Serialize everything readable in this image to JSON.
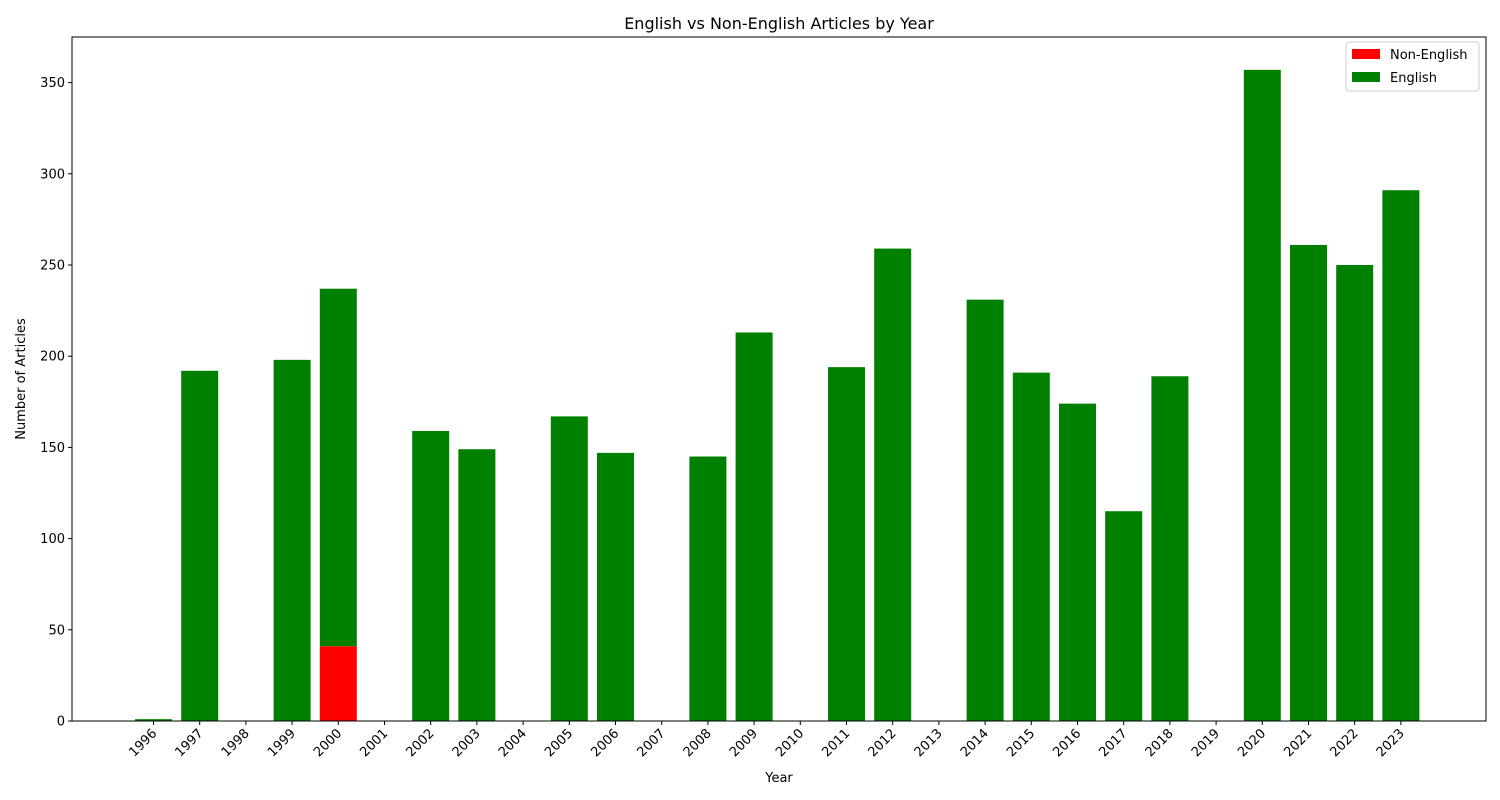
{
  "chart_data": {
    "type": "bar",
    "stacked": true,
    "title": "English vs Non-English Articles by Year",
    "xlabel": "Year",
    "ylabel": "Number of Articles",
    "ylim": [
      0,
      375
    ],
    "yticks": [
      0,
      50,
      100,
      150,
      200,
      250,
      300,
      350
    ],
    "categories": [
      "1996",
      "1997",
      "1998",
      "1999",
      "2000",
      "2001",
      "2002",
      "2003",
      "2004",
      "2005",
      "2006",
      "2007",
      "2008",
      "2009",
      "2010",
      "2011",
      "2012",
      "2013",
      "2014",
      "2015",
      "2016",
      "2017",
      "2018",
      "2019",
      "2020",
      "2021",
      "2022",
      "2023"
    ],
    "series": [
      {
        "name": "Non-English",
        "color": "#ff0000",
        "values": [
          0,
          0,
          0,
          0,
          41,
          0,
          0,
          0,
          0,
          0,
          0,
          0,
          0,
          0,
          0,
          0,
          0,
          0,
          0,
          0,
          0,
          0,
          0,
          0,
          0,
          0,
          0,
          0
        ]
      },
      {
        "name": "English",
        "color": "#008000",
        "values": [
          1,
          192,
          0,
          198,
          196,
          0,
          159,
          149,
          0,
          167,
          147,
          0,
          145,
          213,
          0,
          194,
          259,
          0,
          231,
          191,
          174,
          115,
          189,
          0,
          357,
          261,
          250,
          291
        ]
      }
    ],
    "grid": false,
    "legend_position": "top-right"
  }
}
